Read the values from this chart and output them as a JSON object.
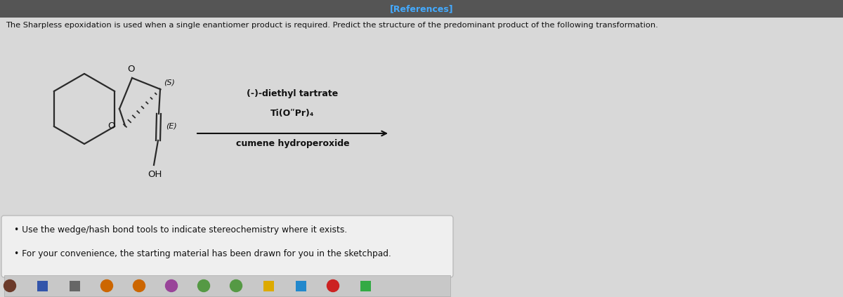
{
  "bg_color": "#d8d8d8",
  "header_bg": "#555555",
  "header_text": "[References]",
  "header_text_color": "#44aaff",
  "main_question": "The Sharpless epoxidation is used when a single enantiomer product is required. Predict the structure of the predominant product of the following transformation.",
  "reagent_line1": "(-)-diethyl tartrate",
  "reagent_line2": "Ti(OʺPr)₄",
  "reagent_line3": "cumene hydroperoxide",
  "label_S": "(S)",
  "label_E": "(E)",
  "label_O1": "O",
  "label_O2": "O",
  "label_OH": "OH",
  "bullet1": "Use the wedge/hash bond tools to indicate stereochemistry where it exists.",
  "bullet2": "For your convenience, the starting material has been drawn for you in the sketchpad.",
  "box_bg": "#efefef",
  "box_border": "#bbbbbb",
  "line_color": "#2a2a2a",
  "text_color": "#111111",
  "arrow_color": "#111111"
}
